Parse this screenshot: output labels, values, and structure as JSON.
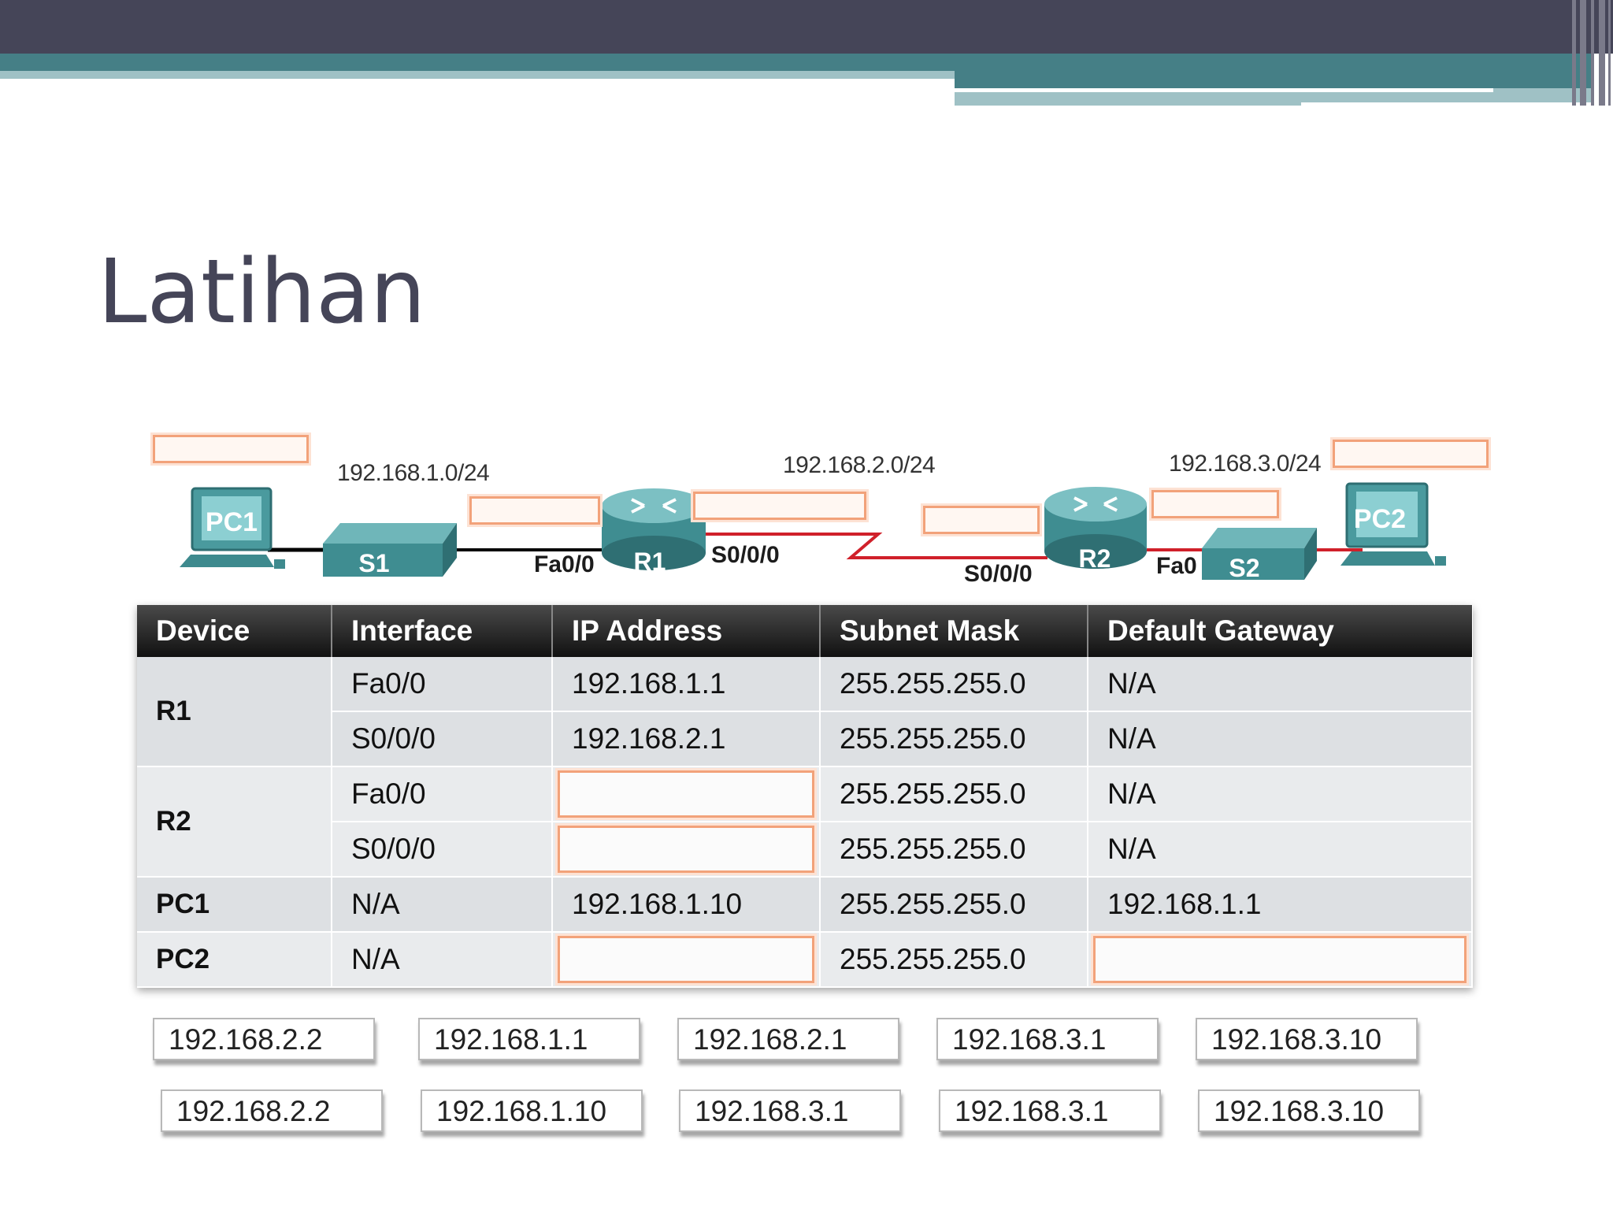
{
  "slide": {
    "title": "Latihan"
  },
  "topology": {
    "networks": [
      "192.168.1.0/24",
      "192.168.2.0/24",
      "192.168.3.0/24"
    ],
    "devices": {
      "pc1": "PC1",
      "s1": "S1",
      "r1": "R1",
      "r2": "R2",
      "s2": "S2",
      "pc2": "PC2"
    },
    "interfaces": {
      "r1_fa": "Fa0/0",
      "r1_s": "S0/0/0",
      "r2_s": "S0/0/0",
      "r2_fa": "Fa0"
    }
  },
  "table": {
    "headers": [
      "Device",
      "Interface",
      "IP Address",
      "Subnet Mask",
      "Default Gateway"
    ],
    "rows": [
      {
        "device": "R1",
        "interface": "Fa0/0",
        "ip": "192.168.1.1",
        "mask": "255.255.255.0",
        "gateway": "N/A"
      },
      {
        "device": "",
        "interface": "S0/0/0",
        "ip": "192.168.2.1",
        "mask": "255.255.255.0",
        "gateway": "N/A"
      },
      {
        "device": "R2",
        "interface": "Fa0/0",
        "ip": "",
        "mask": "255.255.255.0",
        "gateway": "N/A"
      },
      {
        "device": "",
        "interface": "S0/0/0",
        "ip": "",
        "mask": "255.255.255.0",
        "gateway": "N/A"
      },
      {
        "device": "PC1",
        "interface": "N/A",
        "ip": "192.168.1.10",
        "mask": "255.255.255.0",
        "gateway": "192.168.1.1"
      },
      {
        "device": "PC2",
        "interface": "N/A",
        "ip": "",
        "mask": "255.255.255.0",
        "gateway": ""
      }
    ]
  },
  "answers": {
    "row1": [
      "192.168.2.2",
      "192.168.1.1",
      "192.168.2.1",
      "192.168.3.1",
      "192.168.3.10"
    ],
    "row2": [
      "192.168.2.2",
      "192.168.1.10",
      "192.168.3.1",
      "192.168.3.1",
      "192.168.3.10"
    ]
  },
  "colors": {
    "header_bar": "#454558",
    "accent_teal": "#457f86",
    "serial_link": "#d0202a",
    "drop_target": "#f2a27a"
  }
}
